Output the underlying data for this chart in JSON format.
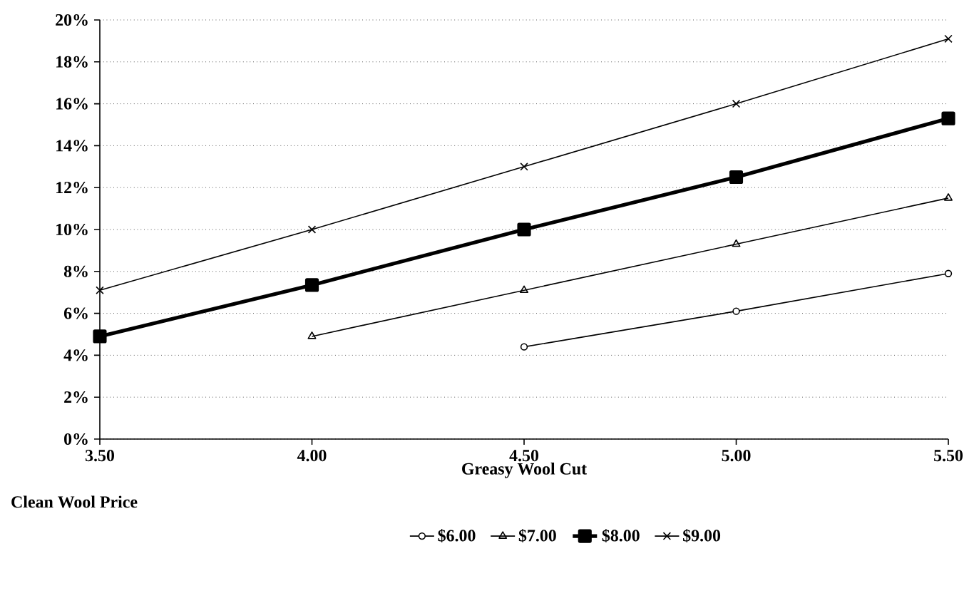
{
  "chart_data": {
    "type": "line",
    "xlabel": "Greasy Wool Cut",
    "legend_title": "Clean Wool Price",
    "x": [
      3.5,
      4.0,
      4.5,
      5.0,
      5.5
    ],
    "series": [
      {
        "name": "$6.00",
        "color": "#000000",
        "marker": "circle",
        "values": [
          null,
          null,
          4.4,
          6.1,
          7.9
        ]
      },
      {
        "name": "$7.00",
        "color": "#000000",
        "marker": "triangle",
        "values": [
          null,
          4.9,
          7.1,
          9.3,
          11.5
        ]
      },
      {
        "name": "$8.00",
        "color": "#000000",
        "marker": "square",
        "values": [
          4.9,
          7.35,
          10.0,
          12.5,
          15.3
        ]
      },
      {
        "name": "$9.00",
        "color": "#000000",
        "marker": "cross",
        "values": [
          7.1,
          10.0,
          13.0,
          16.0,
          19.1
        ]
      }
    ],
    "xlim": [
      3.5,
      5.5
    ],
    "ylim": [
      0,
      20
    ],
    "xticks": [
      {
        "value": 3.5,
        "label": "3.50"
      },
      {
        "value": 4.0,
        "label": "4.00"
      },
      {
        "value": 4.5,
        "label": "4.50"
      },
      {
        "value": 5.0,
        "label": "5.00"
      },
      {
        "value": 5.5,
        "label": "5.50"
      }
    ],
    "yticks": [
      {
        "value": 0,
        "label": "0%"
      },
      {
        "value": 2,
        "label": "2%"
      },
      {
        "value": 4,
        "label": "4%"
      },
      {
        "value": 6,
        "label": "6%"
      },
      {
        "value": 8,
        "label": "8%"
      },
      {
        "value": 10,
        "label": "10%"
      },
      {
        "value": 12,
        "label": "12%"
      },
      {
        "value": 14,
        "label": "14%"
      },
      {
        "value": 16,
        "label": "16%"
      },
      {
        "value": 18,
        "label": "18%"
      },
      {
        "value": 20,
        "label": "20%"
      }
    ],
    "grid": "y",
    "legend": "bottom",
    "line_style": "solid"
  }
}
